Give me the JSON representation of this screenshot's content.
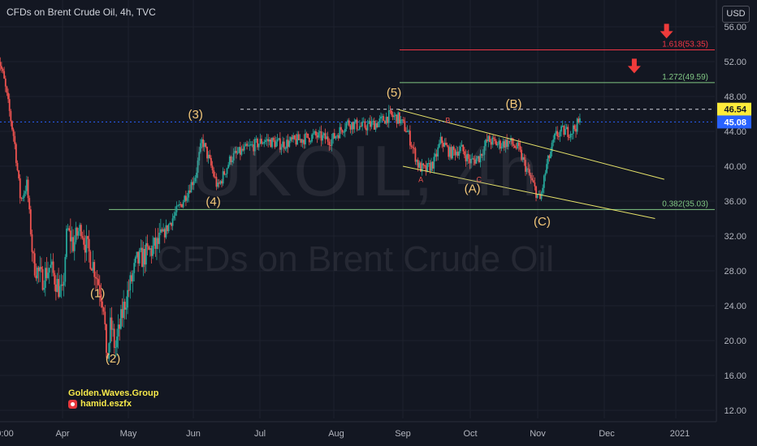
{
  "header": {
    "title": "CFDs on Brent Crude Oil, 4h, TVC"
  },
  "currency_badge": "USD",
  "watermark": {
    "symbol": "UKOIL, 4h",
    "description": "CFDs on Brent Crude Oil"
  },
  "signature": {
    "line1": "Golden.Waves.Group",
    "line2": "hamid.eszfx"
  },
  "colors": {
    "background": "#131722",
    "up": "#26a69a",
    "down": "#ef5350",
    "fib_red": "#f23645",
    "fib_green": "#81c784",
    "trendline": "#e8e46a",
    "wave_label": "#f5c97a",
    "price_line": "#2962ff"
  },
  "chart_data": {
    "type": "candlestick",
    "title": "CFDs on Brent Crude Oil, 4h, TVC",
    "symbol": "UKOIL",
    "timeframe": "4h",
    "ylim": [
      10,
      57.5
    ],
    "yticks": [
      "56.00",
      "52.00",
      "48.00",
      "44.00",
      "40.00",
      "36.00",
      "32.00",
      "28.00",
      "24.00",
      "20.00",
      "16.00",
      "12.00"
    ],
    "xticks": [
      "0:00",
      "Apr",
      "May",
      "Jun",
      "Jul",
      "Aug",
      "Sep",
      "Oct",
      "Nov",
      "Dec",
      "2021"
    ],
    "price_path": [
      {
        "t": "Mar 01",
        "p": 53
      },
      {
        "t": "Mar 04",
        "p": 50
      },
      {
        "t": "Mar 09",
        "p": 43
      },
      {
        "t": "Mar 12",
        "p": 36
      },
      {
        "t": "Mar 15",
        "p": 38
      },
      {
        "t": "Mar 18",
        "p": 29
      },
      {
        "t": "Mar 22",
        "p": 27
      },
      {
        "t": "Mar 26",
        "p": 28.5
      },
      {
        "t": "Apr 01",
        "p": 25
      },
      {
        "t": "Apr 03",
        "p": 33
      },
      {
        "t": "Apr 06",
        "p": 31
      },
      {
        "t": "Apr 09",
        "p": 33
      },
      {
        "t": "Apr 13",
        "p": 30
      },
      {
        "t": "Apr 16",
        "p": 28
      },
      {
        "t": "Apr 20",
        "p": 24
      },
      {
        "t": "Apr 21",
        "p": 17
      },
      {
        "t": "Apr 23",
        "p": 22
      },
      {
        "t": "Apr 25",
        "p": 19
      },
      {
        "t": "Apr 29",
        "p": 24
      },
      {
        "t": "May 05",
        "p": 29
      },
      {
        "t": "May 10",
        "p": 30
      },
      {
        "t": "May 15",
        "p": 31
      },
      {
        "t": "May 22",
        "p": 34
      },
      {
        "t": "May 27",
        "p": 36
      },
      {
        "t": "Jun 02",
        "p": 39
      },
      {
        "t": "Jun 05",
        "p": 43
      },
      {
        "t": "Jun 09",
        "p": 40
      },
      {
        "t": "Jun 12",
        "p": 37.5
      },
      {
        "t": "Jun 18",
        "p": 41
      },
      {
        "t": "Jun 25",
        "p": 42
      },
      {
        "t": "Jul 03",
        "p": 43
      },
      {
        "t": "Jul 10",
        "p": 42.5
      },
      {
        "t": "Jul 17",
        "p": 43
      },
      {
        "t": "Jul 24",
        "p": 43.5
      },
      {
        "t": "Jul 31",
        "p": 43
      },
      {
        "t": "Aug 07",
        "p": 45
      },
      {
        "t": "Aug 14",
        "p": 44.5
      },
      {
        "t": "Aug 21",
        "p": 45
      },
      {
        "t": "Aug 26",
        "p": 45.8
      },
      {
        "t": "Aug 30",
        "p": 45.5
      },
      {
        "t": "Sep 03",
        "p": 44
      },
      {
        "t": "Sep 08",
        "p": 40
      },
      {
        "t": "Sep 11",
        "p": 39.5
      },
      {
        "t": "Sep 15",
        "p": 40.5
      },
      {
        "t": "Sep 18",
        "p": 43
      },
      {
        "t": "Sep 22",
        "p": 41.5
      },
      {
        "t": "Sep 27",
        "p": 42
      },
      {
        "t": "Oct 01",
        "p": 40.5
      },
      {
        "t": "Oct 05",
        "p": 41
      },
      {
        "t": "Oct 09",
        "p": 43
      },
      {
        "t": "Oct 14",
        "p": 42.5
      },
      {
        "t": "Oct 19",
        "p": 42.8
      },
      {
        "t": "Oct 23",
        "p": 42
      },
      {
        "t": "Oct 28",
        "p": 39
      },
      {
        "t": "Nov 02",
        "p": 36
      },
      {
        "t": "Nov 05",
        "p": 40
      },
      {
        "t": "Nov 09",
        "p": 43.5
      },
      {
        "t": "Nov 12",
        "p": 44
      },
      {
        "t": "Nov 16",
        "p": 44
      },
      {
        "t": "Nov 20",
        "p": 45.08
      }
    ],
    "last_price": 45.08,
    "horizontal_levels": [
      {
        "label": "1.618(53.35)",
        "value": 53.35,
        "color": "#f23645"
      },
      {
        "label": "1.272(49.59)",
        "value": 49.59,
        "color": "#81c784"
      },
      {
        "label": "0.382(35.03)",
        "value": 35.03,
        "color": "#81c784"
      }
    ],
    "dashed_level": {
      "value": 46.54,
      "label": "46.54"
    },
    "price_labels": [
      {
        "value": 46.54,
        "text": "46.54",
        "bg": "#ffeb3b",
        "fg": "#131722"
      },
      {
        "value": 45.08,
        "text": "45.08",
        "bg": "#2962ff",
        "fg": "#ffffff"
      }
    ],
    "wave_labels": [
      {
        "text": "(1)",
        "t": "Apr 17",
        "p": 25
      },
      {
        "text": "(2)",
        "t": "Apr 24",
        "p": 17.5
      },
      {
        "text": "(3)",
        "t": "Jun 02",
        "p": 45.5
      },
      {
        "text": "(4)",
        "t": "Jun 10",
        "p": 35.5
      },
      {
        "text": "(5)",
        "t": "Aug 28",
        "p": 48
      },
      {
        "text": "(B)",
        "t": "Oct 21",
        "p": 46.7
      },
      {
        "text": "(A)",
        "t": "Oct 02",
        "p": 37
      },
      {
        "text": "(C)",
        "t": "Nov 03",
        "p": 33.2
      },
      {
        "text": "A",
        "t": "Sep 09",
        "p": 38.2
      },
      {
        "text": "B",
        "t": "Sep 21",
        "p": 45
      },
      {
        "text": "C",
        "t": "Oct 05",
        "p": 38.2
      }
    ],
    "trendlines": [
      {
        "from": {
          "t": "Aug 30",
          "p": 46.5
        },
        "to": {
          "t": "Dec 27",
          "p": 38.5
        }
      },
      {
        "from": {
          "t": "Sep 01",
          "p": 40
        },
        "to": {
          "t": "Dec 23",
          "p": 34
        }
      }
    ],
    "arrows": [
      {
        "t": "Dec 14",
        "p": 51.5
      },
      {
        "t": "Dec 28",
        "p": 55.5
      }
    ]
  }
}
